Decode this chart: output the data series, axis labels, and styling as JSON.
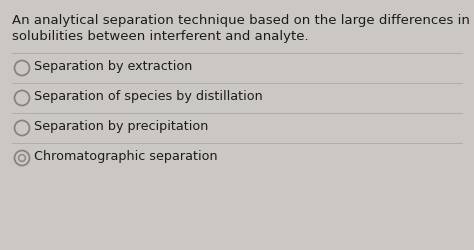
{
  "background_color": "#cbc8c3",
  "question_line1": "An analytical separation technique based on the large differences in",
  "question_line2": "solubilities between interferent and analyte.",
  "options": [
    "Separation by extraction",
    "Separation of species by distillation",
    "Separation by precipitation",
    "Chromatographic separation"
  ],
  "text_color": "#1c1c1c",
  "line_color": "#b0aca6",
  "circle_edge_color": "#888480",
  "font_size_question": 9.5,
  "font_size_option": 9.2,
  "correct_option_index": 3,
  "fig_width": 4.74,
  "fig_height": 2.51,
  "dpi": 100
}
